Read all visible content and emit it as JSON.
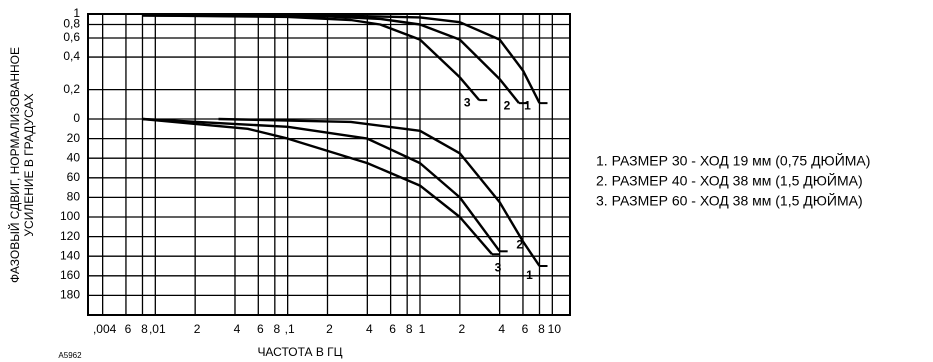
{
  "chart_data": {
    "type": "line",
    "xlabel": "ЧАСТОТА В ГЦ",
    "ylabel": [
      "ФАЗОВЫЙ СДВИГ, НОРМАЛИЗОВАННОЕ",
      "УСИЛЕНИЕ В ГРАДУСАХ"
    ],
    "note": "A5962",
    "legend": [
      "1. РАЗМЕР 30 - ХОД 19 мм (0,75 ДЮЙМА)",
      "2. РАЗМЕР 40 - ХОД 38 мм (1,5 ДЮЙМА)",
      "3. РАЗМЕР 60 - ХОД 38 мм (1,5 ДЮЙМА)"
    ],
    "xlog": true,
    "y2log": true,
    "grid": true,
    "color": "#000000",
    "xlim": [
      0.0031,
      13.6
    ],
    "xticks": [
      {
        "value": 0.004,
        "label": ",004"
      },
      {
        "value": 0.006,
        "label": "6"
      },
      {
        "value": 0.008,
        "label": "8"
      },
      {
        "value": 0.01,
        "label": ",01"
      },
      {
        "value": 0.02,
        "label": "2"
      },
      {
        "value": 0.04,
        "label": "4"
      },
      {
        "value": 0.06,
        "label": "6"
      },
      {
        "value": 0.08,
        "label": "8"
      },
      {
        "value": 0.1,
        "label": ",1"
      },
      {
        "value": 0.2,
        "label": "2"
      },
      {
        "value": 0.4,
        "label": "4"
      },
      {
        "value": 0.6,
        "label": "6"
      },
      {
        "value": 0.8,
        "label": "8"
      },
      1,
      2,
      4,
      6,
      8,
      10
    ],
    "ylim": [
      200,
      0
    ],
    "yticks": [
      0,
      20,
      40,
      60,
      80,
      100,
      120,
      140,
      160,
      180
    ],
    "y2lim": [
      0.107,
      1
    ],
    "y2ticks": [
      1,
      {
        "value": 0.8,
        "label": "0,8"
      },
      {
        "value": 0.6,
        "label": "0,6"
      },
      {
        "value": 0.4,
        "label": "0,4"
      },
      {
        "value": 0.2,
        "label": "0,2"
      }
    ],
    "series": [
      {
        "name": "1",
        "axis": "y2",
        "x": [
          0.008,
          0.3,
          1,
          2,
          4,
          6,
          8
        ],
        "values": [
          0.97,
          0.96,
          0.93,
          0.84,
          0.58,
          0.3,
          0.15
        ]
      },
      {
        "name": "2",
        "axis": "y2",
        "x": [
          0.008,
          0.2,
          0.5,
          1,
          2,
          4,
          5.6
        ],
        "values": [
          0.97,
          0.95,
          0.9,
          0.8,
          0.58,
          0.25,
          0.15
        ]
      },
      {
        "name": "3",
        "axis": "y2",
        "x": [
          0.008,
          0.1,
          0.3,
          0.5,
          1,
          2,
          2.8
        ],
        "values": [
          0.97,
          0.94,
          0.88,
          0.8,
          0.58,
          0.26,
          0.16
        ]
      },
      {
        "name": "1",
        "x": [
          0.03,
          0.3,
          1,
          2,
          4,
          6,
          8
        ],
        "values": [
          0,
          3,
          12,
          35,
          85,
          125,
          150
        ]
      },
      {
        "name": "2",
        "x": [
          0.008,
          0.1,
          0.4,
          1,
          2,
          4
        ],
        "values": [
          0,
          8,
          20,
          45,
          80,
          135
        ]
      },
      {
        "name": "3",
        "x": [
          0.008,
          0.05,
          0.1,
          0.4,
          1,
          2,
          3.5
        ],
        "values": [
          0,
          10,
          20,
          45,
          68,
          100,
          138
        ]
      }
    ]
  }
}
